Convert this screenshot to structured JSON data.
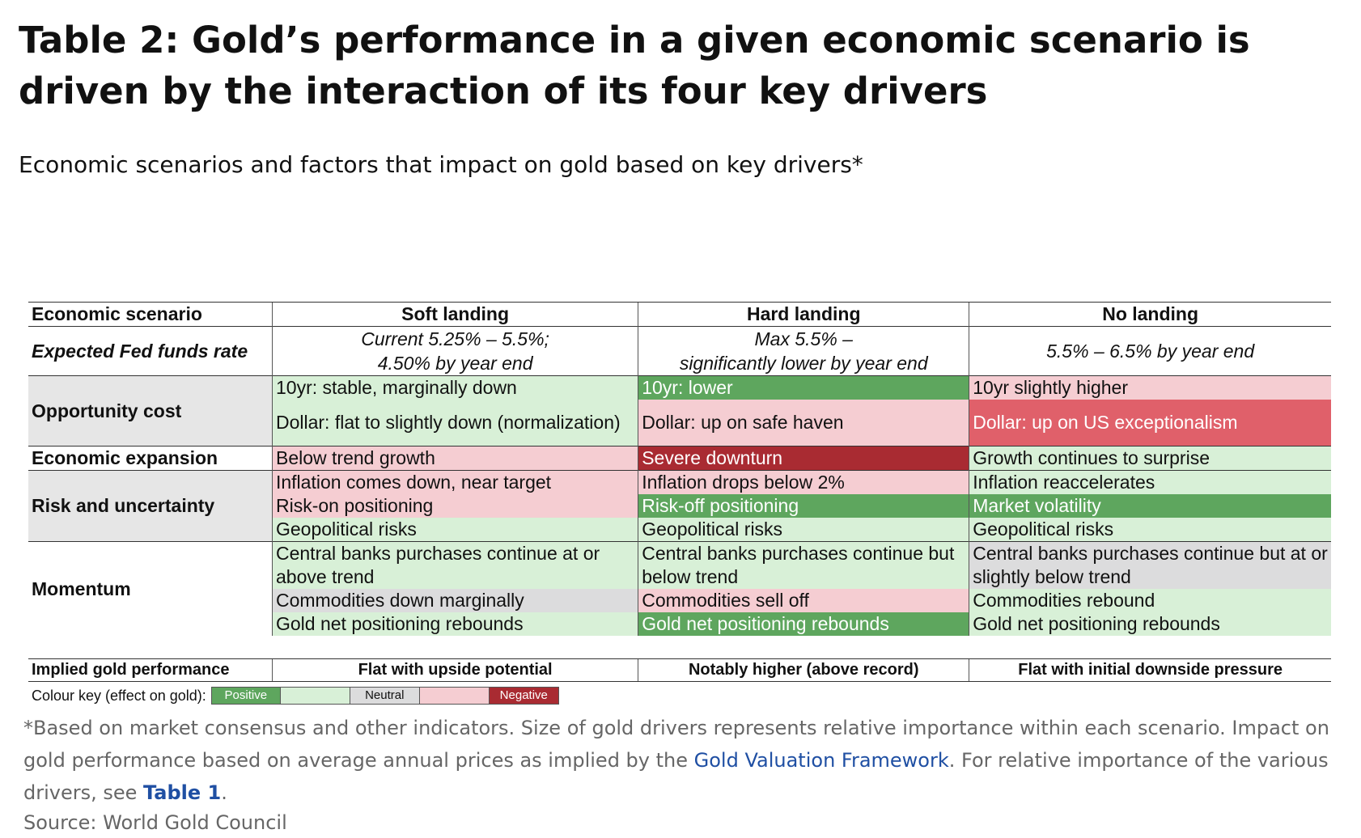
{
  "title": "Table 2: Gold’s performance in a given economic scenario is driven by the interaction of its four key drivers",
  "subtitle": "Economic scenarios and factors that impact on gold based on key drivers*",
  "table": {
    "header": {
      "label": "Economic scenario",
      "soft": "Soft landing",
      "hard": "Hard landing",
      "none": "No landing"
    },
    "fed": {
      "label": "Expected Fed funds rate",
      "soft_line1": "Current 5.25% – 5.5%;",
      "soft_line2": "4.50% by year end",
      "hard_line1": "Max 5.5% –",
      "hard_line2": "significantly lower by year end",
      "none": "5.5% – 6.5% by year end"
    },
    "opportunity_cost": {
      "label": "Opportunity cost",
      "soft_10yr": "10yr: stable, marginally down",
      "hard_10yr": "10yr: lower",
      "none_10yr": "10yr slightly higher",
      "soft_dollar": "Dollar: flat to slightly down (normalization)",
      "hard_dollar": "Dollar: up on safe haven",
      "none_dollar": "Dollar: up on US exceptionalism"
    },
    "economic_expansion": {
      "label": "Economic expansion",
      "soft": "Below trend growth",
      "hard": "Severe downturn",
      "none": "Growth continues to surprise"
    },
    "risk": {
      "label": "Risk and uncertainty",
      "soft_inflation": "Inflation comes down, near target",
      "hard_inflation": "Inflation drops below 2%",
      "none_inflation": "Inflation reaccelerates",
      "soft_positioning": "Risk-on positioning",
      "hard_positioning": "Risk-off positioning",
      "none_positioning": "Market volatility",
      "soft_geo": "Geopolitical risks",
      "hard_geo": "Geopolitical risks",
      "none_geo": "Geopolitical risks"
    },
    "momentum": {
      "label": "Momentum",
      "soft_cb": "Central banks purchases continue at or above trend",
      "hard_cb": "Central banks purchases continue but below trend",
      "none_cb": "Central banks purchases continue but at or slightly below trend",
      "soft_comm": "Commodities down marginally",
      "hard_comm": "Commodities sell off",
      "none_comm": "Commodities rebound",
      "soft_gold": "Gold net positioning rebounds",
      "hard_gold": "Gold net positioning rebounds",
      "none_gold": "Gold net positioning rebounds"
    },
    "implied": {
      "label": "Implied gold performance",
      "soft": "Flat with upside potential",
      "hard": "Notably higher (above record)",
      "none": "Flat with initial downside pressure"
    }
  },
  "colour_key": {
    "label": "Colour key (effect on gold):",
    "positive": "Positive",
    "neutral": "Neutral",
    "negative": "Negative",
    "colors": {
      "strong_positive": "#5ea65e",
      "positive": "#d8f0d7",
      "neutral": "#dcdcdd",
      "negative": "#f5cdd2",
      "strong_negative_red": "#e0606a",
      "strong_negative": "#a92b32"
    }
  },
  "footnote": {
    "text_before_link": "*Based on market consensus and other indicators. Size of gold drivers represents relative importance within each scenario. Impact on gold performance based on average annual prices as implied by the ",
    "link_text": "Gold Valuation Framework",
    "text_after_link": ". For relative importance of the various drivers, see ",
    "table_link": "Table 1",
    "end": "."
  },
  "source": "Source: World Gold Council"
}
